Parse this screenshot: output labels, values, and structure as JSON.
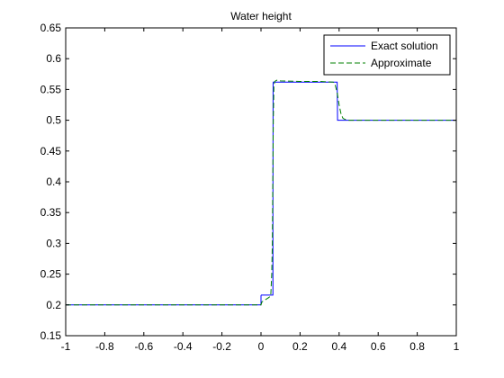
{
  "chart_data": {
    "type": "line",
    "title": "Water height",
    "xlabel": "",
    "ylabel": "",
    "xlim": [
      -1,
      1
    ],
    "ylim": [
      0.15,
      0.65
    ],
    "x_ticks": [
      -1,
      -0.8,
      -0.6,
      -0.4,
      -0.2,
      0,
      0.2,
      0.4,
      0.6,
      0.8,
      1
    ],
    "x_tick_labels": [
      "-1",
      "-0.8",
      "-0.6",
      "-0.4",
      "-0.2",
      "0",
      "0.2",
      "0.4",
      "0.6",
      "0.8",
      "1"
    ],
    "y_ticks": [
      0.15,
      0.2,
      0.25,
      0.3,
      0.35,
      0.4,
      0.45,
      0.5,
      0.55,
      0.6,
      0.65
    ],
    "y_tick_labels": [
      "0.15",
      "0.2",
      "0.25",
      "0.3",
      "0.35",
      "0.4",
      "0.45",
      "0.5",
      "0.55",
      "0.6",
      "0.65"
    ],
    "grid": false,
    "legend_position": "top-right",
    "series": [
      {
        "name": "Exact solution",
        "color": "#0000ff",
        "line_style": "solid",
        "x": [
          -1,
          0,
          0,
          0.002,
          0.003,
          0.061,
          0.061,
          0.062,
          0.063,
          0.39,
          0.392,
          1
        ],
        "y": [
          0.2,
          0.2,
          0.215,
          0.216,
          0.216,
          0.216,
          0.335,
          0.56,
          0.562,
          0.562,
          0.5,
          0.5
        ]
      },
      {
        "name": "Approximate",
        "color": "#008000",
        "line_style": "dashed",
        "x": [
          -1,
          0.0,
          0.005,
          0.04,
          0.05,
          0.055,
          0.058,
          0.06,
          0.063,
          0.066,
          0.07,
          0.08,
          0.1,
          0.2,
          0.3,
          0.37,
          0.38,
          0.39,
          0.4,
          0.41,
          0.42,
          0.44,
          0.5,
          1
        ],
        "y": [
          0.2,
          0.2,
          0.205,
          0.212,
          0.215,
          0.25,
          0.3,
          0.38,
          0.5,
          0.555,
          0.563,
          0.565,
          0.564,
          0.563,
          0.563,
          0.562,
          0.557,
          0.545,
          0.525,
          0.51,
          0.503,
          0.5,
          0.5,
          0.5
        ]
      }
    ]
  }
}
